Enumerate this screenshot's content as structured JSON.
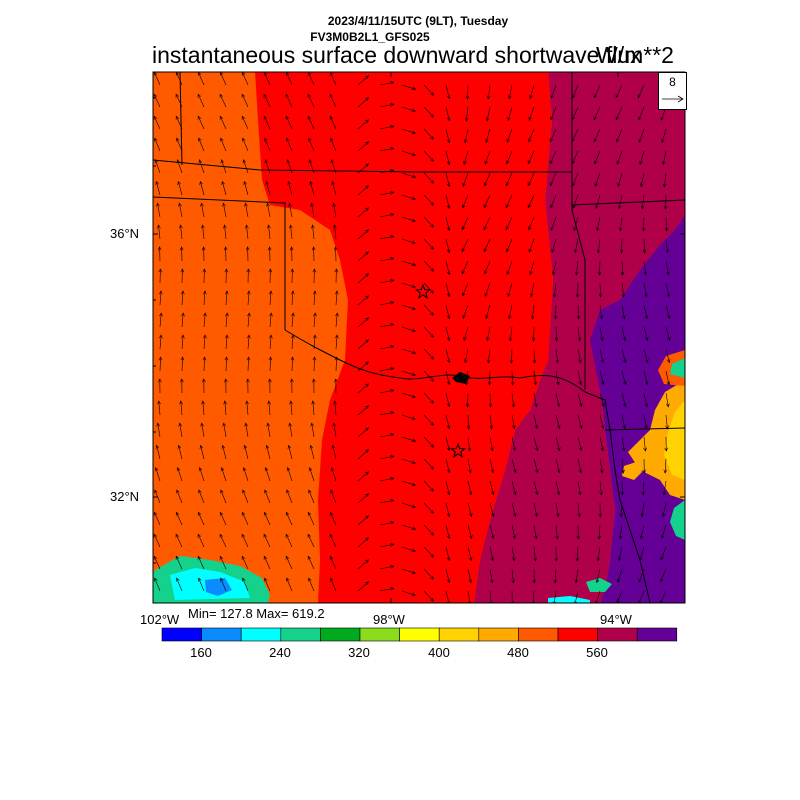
{
  "header": {
    "datetime": "2023/4/11/15UTC (9LT), Tuesday",
    "model": "FV3M0B2L1_GFS025",
    "title": "instantaneous surface downward shortwave flux",
    "units": "W/m**2"
  },
  "axes": {
    "lat_labels": [
      "36°N",
      "32°N"
    ],
    "lon_labels": [
      "102°W",
      "98°W",
      "94°W"
    ]
  },
  "stats": {
    "text": "Min= 127.8 Max= 619.2",
    "min": 127.8,
    "max": 619.2
  },
  "vector_legend": {
    "value": "8",
    "icon": "arrow-right-icon"
  },
  "colorbar": {
    "colors": [
      "#0000ff",
      "#0a8cff",
      "#00ffff",
      "#14d28c",
      "#00aa1e",
      "#8cdc1e",
      "#ffff00",
      "#ffd200",
      "#ffaa00",
      "#ff5a00",
      "#ff0000",
      "#b0004a",
      "#640096"
    ],
    "labels": [
      "160",
      "240",
      "320",
      "400",
      "480",
      "560"
    ]
  },
  "field_colors": {
    "orange": "#ff5a00",
    "red": "#ff0000",
    "maroon": "#b0004a",
    "purple": "#640096"
  }
}
